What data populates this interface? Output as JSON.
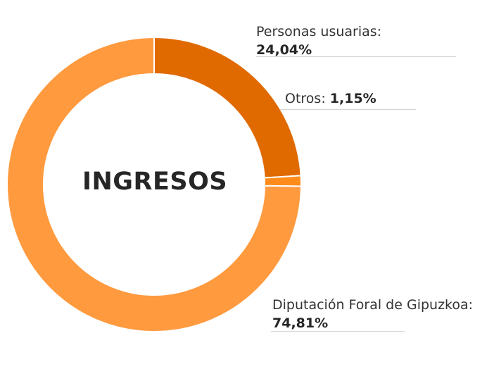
{
  "chart_data": {
    "type": "pie",
    "title": "INGRESOS",
    "slices": [
      {
        "name": "Personas usuarias:",
        "value": 24.04,
        "value_label": "24,04%",
        "color": "#e06a00"
      },
      {
        "name": "Otros:",
        "value": 1.15,
        "value_label": "1,15%",
        "color": "#ff8c1a"
      },
      {
        "name": "Diputación Foral de Gipuzkoa:",
        "value": 74.81,
        "value_label": "74,81%",
        "color": "#ff9a3f"
      }
    ]
  }
}
